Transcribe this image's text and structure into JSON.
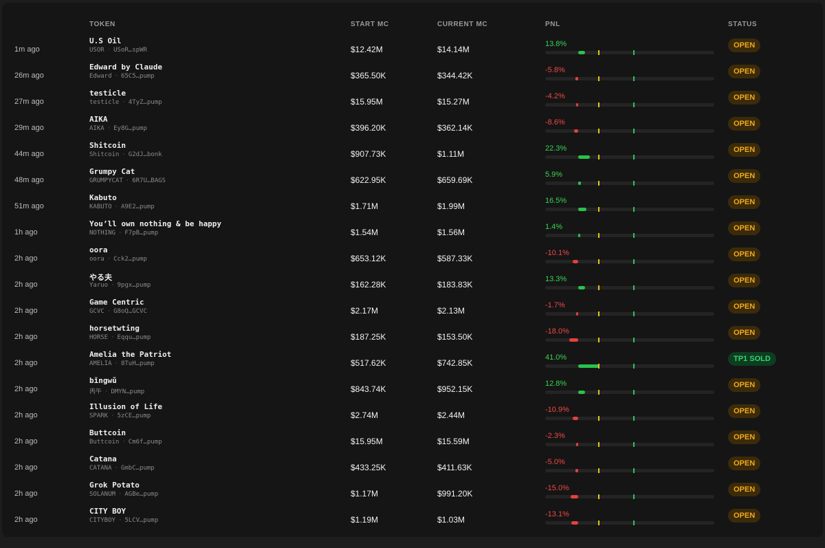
{
  "table": {
    "headers": {
      "token": "TOKEN",
      "start_mc": "START MC",
      "current_mc": "CURRENT MC",
      "pnl": "PNL",
      "status": "STATUS"
    },
    "pnl_scale_range_pct": [
      -100,
      100
    ],
    "rows": [
      {
        "time": "1m ago",
        "name": "U.S Oil",
        "symbol": "USOR",
        "address": "USoR…spWR",
        "start_mc": "$12.42M",
        "current_mc": "$14.14M",
        "pnl": "13.8%",
        "pnl_value": 13.8,
        "status": "OPEN"
      },
      {
        "time": "26m ago",
        "name": "Edward by Claude",
        "symbol": "Edward",
        "address": "65C5…pump",
        "start_mc": "$365.50K",
        "current_mc": "$344.42K",
        "pnl": "-5.8%",
        "pnl_value": -5.8,
        "status": "OPEN"
      },
      {
        "time": "27m ago",
        "name": "testicle",
        "symbol": "testicle",
        "address": "4TyZ…pump",
        "start_mc": "$15.95M",
        "current_mc": "$15.27M",
        "pnl": "-4.2%",
        "pnl_value": -4.2,
        "status": "OPEN"
      },
      {
        "time": "29m ago",
        "name": "AIKA",
        "symbol": "AIKA",
        "address": "Ey8G…pump",
        "start_mc": "$396.20K",
        "current_mc": "$362.14K",
        "pnl": "-8.6%",
        "pnl_value": -8.6,
        "status": "OPEN"
      },
      {
        "time": "44m ago",
        "name": "Shitcoin",
        "symbol": "Shitcoin",
        "address": "G2dJ…bonk",
        "start_mc": "$907.73K",
        "current_mc": "$1.11M",
        "pnl": "22.3%",
        "pnl_value": 22.3,
        "status": "OPEN"
      },
      {
        "time": "48m ago",
        "name": "Grumpy Cat",
        "symbol": "GRUMPYCAT",
        "address": "6R7U…BAGS",
        "start_mc": "$622.95K",
        "current_mc": "$659.69K",
        "pnl": "5.9%",
        "pnl_value": 5.9,
        "status": "OPEN"
      },
      {
        "time": "51m ago",
        "name": "Kabuto",
        "symbol": "KABUTO",
        "address": "A9E2…pump",
        "start_mc": "$1.71M",
        "current_mc": "$1.99M",
        "pnl": "16.5%",
        "pnl_value": 16.5,
        "status": "OPEN"
      },
      {
        "time": "1h ago",
        "name": "You’ll own nothing & be happy",
        "symbol": "NOTHING",
        "address": "F7pB…pump",
        "start_mc": "$1.54M",
        "current_mc": "$1.56M",
        "pnl": "1.4%",
        "pnl_value": 1.4,
        "status": "OPEN"
      },
      {
        "time": "2h ago",
        "name": "oora",
        "symbol": "oora",
        "address": "Cck2…pump",
        "start_mc": "$653.12K",
        "current_mc": "$587.33K",
        "pnl": "-10.1%",
        "pnl_value": -10.1,
        "status": "OPEN"
      },
      {
        "time": "2h ago",
        "name": "やる夫",
        "symbol": "Yaruo",
        "address": "9pgx…pump",
        "start_mc": "$162.28K",
        "current_mc": "$183.83K",
        "pnl": "13.3%",
        "pnl_value": 13.3,
        "status": "OPEN"
      },
      {
        "time": "2h ago",
        "name": "Game Centric",
        "symbol": "GCVC",
        "address": "G8oQ…GCVC",
        "start_mc": "$2.17M",
        "current_mc": "$2.13M",
        "pnl": "-1.7%",
        "pnl_value": -1.7,
        "status": "OPEN"
      },
      {
        "time": "2h ago",
        "name": "horsetwting",
        "symbol": "HORSE",
        "address": "Eqqu…pump",
        "start_mc": "$187.25K",
        "current_mc": "$153.50K",
        "pnl": "-18.0%",
        "pnl_value": -18.0,
        "status": "OPEN"
      },
      {
        "time": "2h ago",
        "name": "Amelia the Patriot",
        "symbol": "AMELIA",
        "address": "8TuH…pump",
        "start_mc": "$517.62K",
        "current_mc": "$742.85K",
        "pnl": "41.0%",
        "pnl_value": 41.0,
        "status": "TP1 SOLD"
      },
      {
        "time": "2h ago",
        "name": "bǐngwǔ",
        "symbol": "丙午",
        "address": "DMYN…pump",
        "start_mc": "$843.74K",
        "current_mc": "$952.15K",
        "pnl": "12.8%",
        "pnl_value": 12.8,
        "status": "OPEN"
      },
      {
        "time": "2h ago",
        "name": "Illusion of Life",
        "symbol": "SPARK",
        "address": "5zCE…pump",
        "start_mc": "$2.74M",
        "current_mc": "$2.44M",
        "pnl": "-10.9%",
        "pnl_value": -10.9,
        "status": "OPEN"
      },
      {
        "time": "2h ago",
        "name": "Buttcoin",
        "symbol": "Buttcoin",
        "address": "Cm6f…pump",
        "start_mc": "$15.95M",
        "current_mc": "$15.59M",
        "pnl": "-2.3%",
        "pnl_value": -2.3,
        "status": "OPEN"
      },
      {
        "time": "2h ago",
        "name": "Catana",
        "symbol": "CATANA",
        "address": "GmbC…pump",
        "start_mc": "$433.25K",
        "current_mc": "$411.63K",
        "pnl": "-5.0%",
        "pnl_value": -5.0,
        "status": "OPEN"
      },
      {
        "time": "2h ago",
        "name": "Grok Potato",
        "symbol": "SOLANUM",
        "address": "AGBe…pump",
        "start_mc": "$1.17M",
        "current_mc": "$991.20K",
        "pnl": "-15.0%",
        "pnl_value": -15.0,
        "status": "OPEN"
      },
      {
        "time": "2h ago",
        "name": "CITY BOY",
        "symbol": "CITYBOY",
        "address": "5LCV…pump",
        "start_mc": "$1.19M",
        "current_mc": "$1.03M",
        "pnl": "-13.1%",
        "pnl_value": -13.1,
        "status": "OPEN"
      }
    ]
  },
  "colors": {
    "background": "#151515",
    "positive": "#39d353",
    "negative": "#f04848",
    "open_badge_text": "#f3a91b",
    "sold_badge_text": "#38d46a",
    "marker_yellow": "#e8c21b",
    "marker_green": "#2fc55a"
  }
}
